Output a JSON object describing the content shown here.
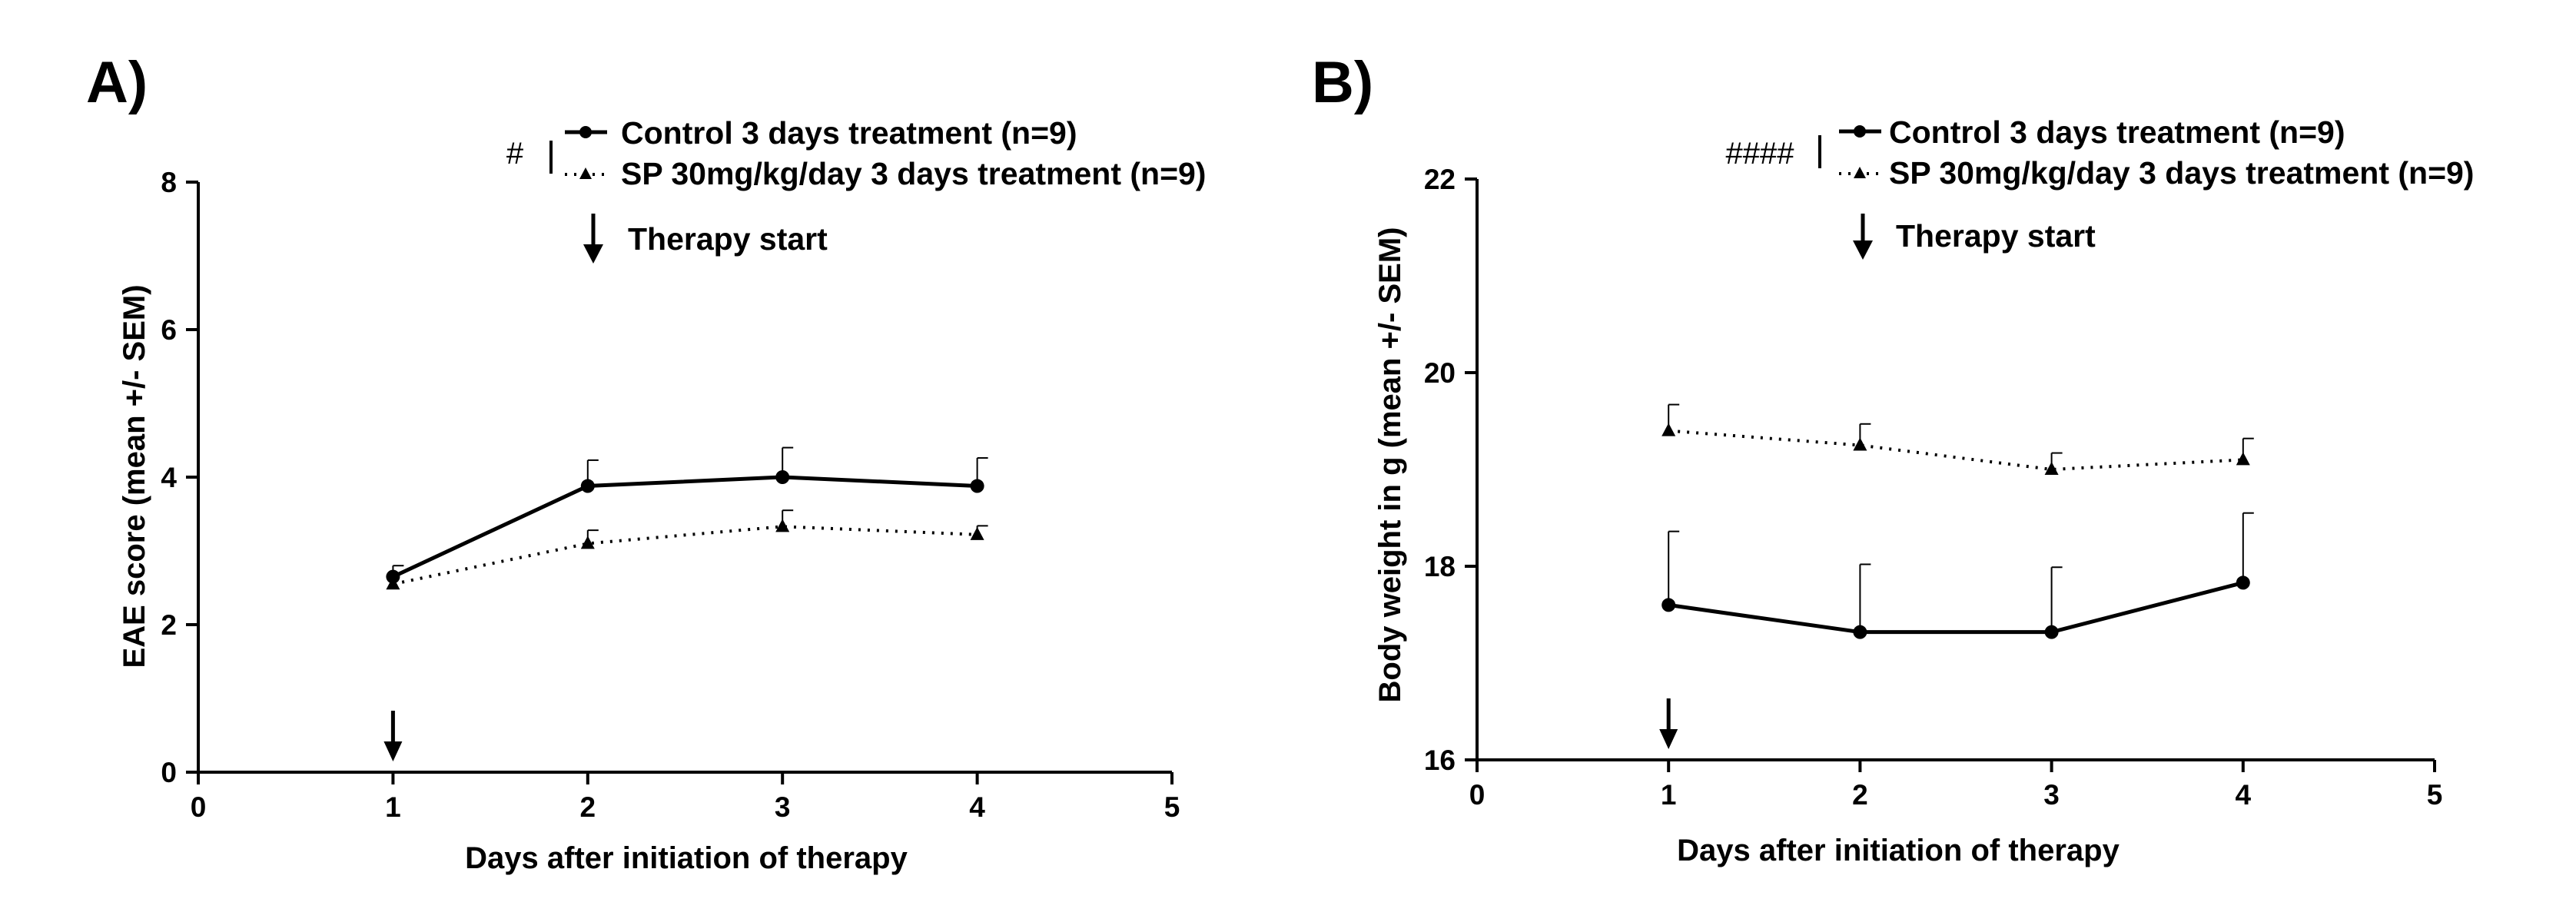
{
  "chart_data": [
    {
      "type": "line",
      "panel_label": "A)",
      "xlabel": "Days after initiation of therapy",
      "ylabel": "EAE score (mean +/- SEM)",
      "xlim": [
        0,
        5
      ],
      "ylim": [
        0,
        8
      ],
      "x_ticks": [
        "0",
        "1",
        "2",
        "3",
        "4",
        "5"
      ],
      "y_ticks": [
        "0",
        "2",
        "4",
        "6",
        "8"
      ],
      "significance": "#",
      "annotation": "Therapy start",
      "therapy_start_day": 1,
      "series": [
        {
          "name": "Control 3 days treatment (n=9)",
          "style": "solid",
          "marker": "circle",
          "x": [
            1,
            2,
            3,
            4
          ],
          "values": [
            2.65,
            3.88,
            4.0,
            3.88
          ],
          "sem": [
            0.15,
            0.35,
            0.4,
            0.38
          ]
        },
        {
          "name": "SP 30mg/kg/day 3 days treatment (n=9)",
          "style": "dotted",
          "marker": "triangle",
          "x": [
            1,
            2,
            3,
            4
          ],
          "values": [
            2.55,
            3.1,
            3.33,
            3.22
          ],
          "sem": [
            0.15,
            0.18,
            0.22,
            0.12
          ]
        }
      ]
    },
    {
      "type": "line",
      "panel_label": "B)",
      "xlabel": "Days after initiation of therapy",
      "ylabel": "Body weight in g (mean +/- SEM)",
      "xlim": [
        0,
        5
      ],
      "ylim": [
        16,
        22
      ],
      "x_ticks": [
        "0",
        "1",
        "2",
        "3",
        "4",
        "5"
      ],
      "y_ticks": [
        "16",
        "18",
        "20",
        "22"
      ],
      "significance": "####",
      "annotation": "Therapy start",
      "therapy_start_day": 1,
      "series": [
        {
          "name": "Control 3 days treatment (n=9)",
          "style": "solid",
          "marker": "circle",
          "x": [
            1,
            2,
            3,
            4
          ],
          "values": [
            17.6,
            17.32,
            17.32,
            17.83
          ],
          "sem": [
            0.76,
            0.7,
            0.67,
            0.72
          ]
        },
        {
          "name": "SP 30mg/kg/day 3 days treatment (n=9)",
          "style": "dotted",
          "marker": "triangle",
          "x": [
            1,
            2,
            3,
            4
          ],
          "values": [
            19.4,
            19.25,
            19.0,
            19.1
          ],
          "sem": [
            0.27,
            0.22,
            0.17,
            0.22
          ]
        }
      ]
    }
  ]
}
